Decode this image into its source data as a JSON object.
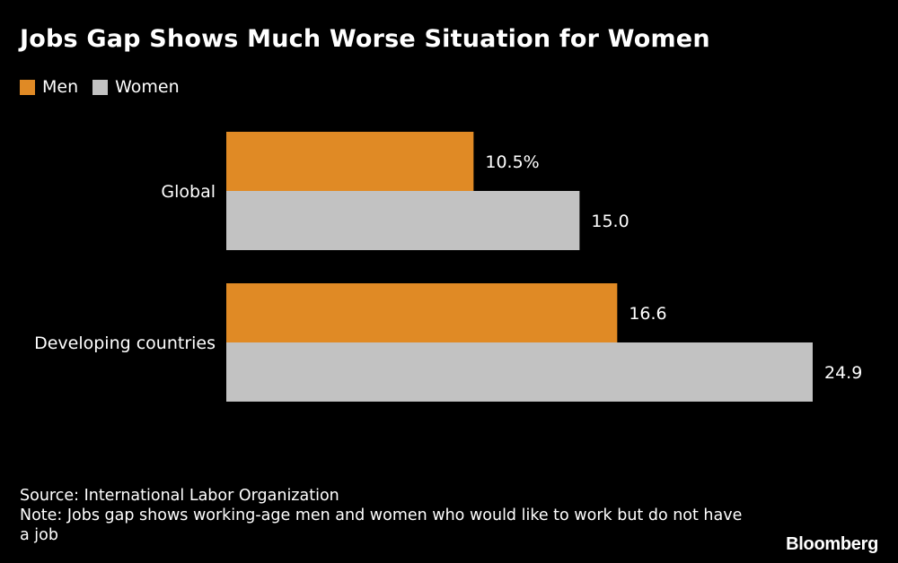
{
  "colors": {
    "men": "#e08a25",
    "women": "#c2c2c2",
    "background": "#000000",
    "text": "#ffffff"
  },
  "chart_data": {
    "type": "bar",
    "orientation": "horizontal",
    "title": "Jobs Gap Shows Much Worse Situation for Women",
    "categories": [
      "Global",
      "Developing countries"
    ],
    "series": [
      {
        "name": "Men",
        "values": [
          10.5,
          16.6
        ],
        "labels": [
          "10.5%",
          "16.6"
        ]
      },
      {
        "name": "Women",
        "values": [
          15.0,
          24.9
        ],
        "labels": [
          "15.0",
          "24.9"
        ]
      }
    ],
    "xlim": [
      0,
      24.9
    ],
    "grid": false,
    "legend": "top-left"
  },
  "footer": {
    "source": "Source: International Labor Organization",
    "note": "Note: Jobs gap shows working-age men and women who would like to work but do not have a job"
  },
  "brand": "Bloomberg"
}
